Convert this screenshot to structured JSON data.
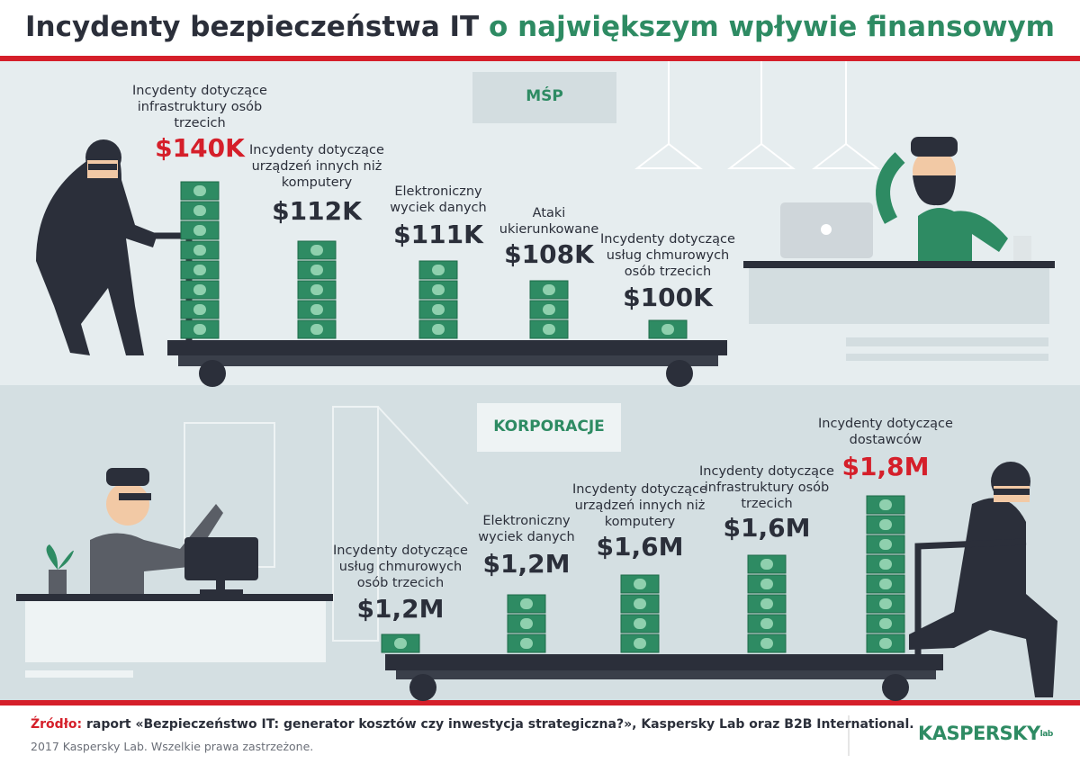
{
  "header": {
    "title_dark": "Incydenty bezpieczeństwa IT",
    "title_green": "o największym wpływie finansowym"
  },
  "sections": [
    {
      "label": "MŚP",
      "items": [
        {
          "label": "Incydenty dotyczące infrastruktury osób trzecich",
          "amount": "$140K"
        },
        {
          "label": "Incydenty dotyczące urządzeń innych niż komputery",
          "amount": "$112K"
        },
        {
          "label": "Elektroniczny wyciek danych",
          "amount": "$111K"
        },
        {
          "label": "Ataki ukierunkowane",
          "amount": "$108K"
        },
        {
          "label": "Incydenty dotyczące usług chmurowych osób trzecich",
          "amount": "$100K"
        }
      ]
    },
    {
      "label": "KORPORACJE",
      "items": [
        {
          "label": "Incydenty dotyczące usług chmurowych osób trzecich",
          "amount": "$1,2M"
        },
        {
          "label": "Elektroniczny wyciek danych",
          "amount": "$1,2M"
        },
        {
          "label": "Incydenty dotyczące urządzeń innych niż komputery",
          "amount": "$1,6M"
        },
        {
          "label": "Incydenty dotyczące infrastruktury osób trzecich",
          "amount": "$1,6M"
        },
        {
          "label": "Incydenty dotyczące dostawców",
          "amount": "$1,8M"
        }
      ]
    }
  ],
  "footer": {
    "source_label": "Źródło:",
    "source": "raport «Bezpieczeństwo IT: generator kosztów czy inwestycja strategiczna?», Kaspersky Lab oraz B2B International.",
    "copyright": "2017 Kaspersky Lab. Wszelkie prawa zastrzeżone.",
    "logo": "KASPERSKY",
    "logo_suffix": "lab"
  }
}
